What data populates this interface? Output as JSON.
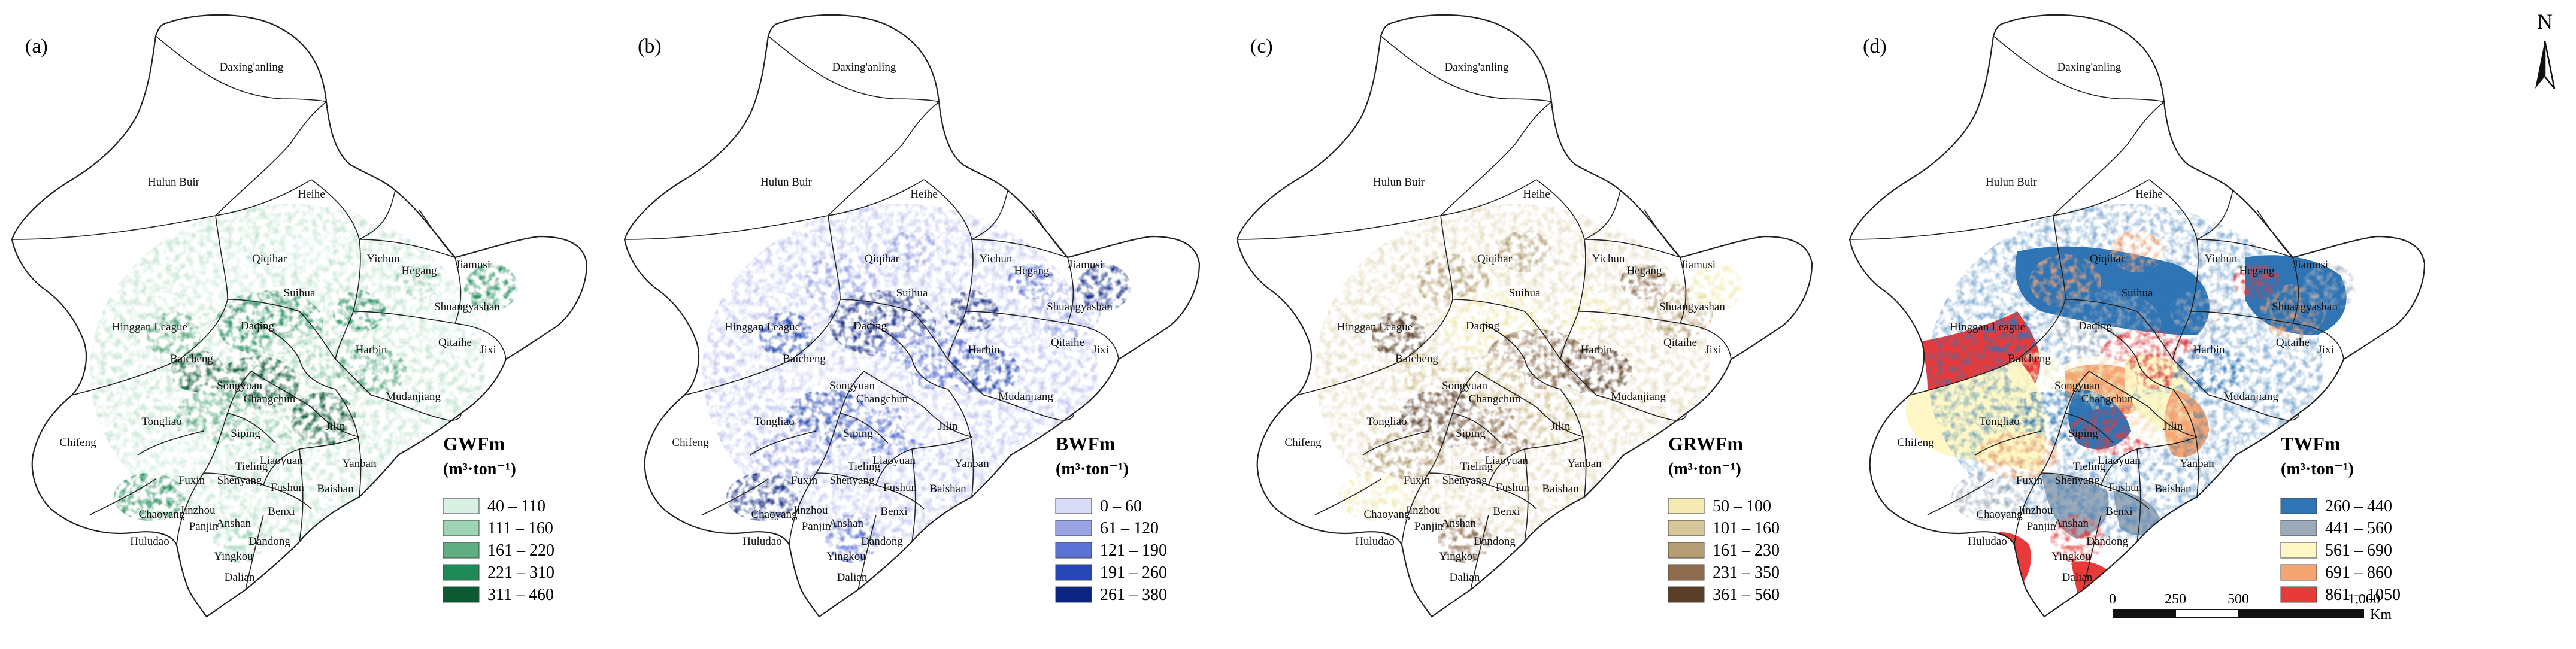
{
  "panels": [
    {
      "label": "(a)",
      "legend_title": "GWFm",
      "legend_unit": "(m³·ton⁻¹)",
      "classes": [
        "40 – 110",
        "111 – 160",
        "161 – 220",
        "221 – 310",
        "311 – 460"
      ],
      "colors": [
        "#d8f1e3",
        "#9fd3b5",
        "#5fae82",
        "#1f8a57",
        "#0b5a32"
      ]
    },
    {
      "label": "(b)",
      "legend_title": "BWFm",
      "legend_unit": "(m³·ton⁻¹)",
      "classes": [
        "0 – 60",
        "61 – 120",
        "121 – 190",
        "191 – 260",
        "261 – 380"
      ],
      "colors": [
        "#d9dcf6",
        "#9aa4e6",
        "#5c72d4",
        "#2748b3",
        "#0d2582"
      ]
    },
    {
      "label": "(c)",
      "legend_title": "GRWFm",
      "legend_unit": "(m³·ton⁻¹)",
      "classes": [
        "50 – 100",
        "101 – 160",
        "161 – 230",
        "231 – 350",
        "361 – 560"
      ],
      "colors": [
        "#f4eab2",
        "#d7c69a",
        "#b59e74",
        "#8c6c4c",
        "#5b3e27"
      ]
    },
    {
      "label": "(d)",
      "legend_title": "TWFm",
      "legend_unit": "(m³·ton⁻¹)",
      "classes": [
        "260 – 440",
        "441 – 560",
        "561 – 690",
        "691 – 860",
        "861 – 1050"
      ],
      "colors": [
        "#2f74b5",
        "#9aaabb",
        "#fff8c6",
        "#f5a572",
        "#e83a3a"
      ]
    }
  ],
  "city_names": [
    "Daxing'anling",
    "Hulun Buir",
    "Heihe",
    "Qiqihar",
    "Yichun",
    "Hegang",
    "Jiamusi",
    "Shuangyashan",
    "Suihua",
    "Daqing",
    "Hinggan League",
    "Baicheng",
    "Harbin",
    "Qitaihe",
    "Jixi",
    "Songyuan",
    "Changchun",
    "Mudanjiang",
    "Tongliao",
    "Siping",
    "Jilin",
    "Chifeng",
    "Liaoyuan",
    "Tieling",
    "Yanban",
    "Fuxin",
    "Shenyang",
    "Fushun",
    "Baishan",
    "Chaoyang",
    "Jinzhou",
    "Benxi",
    "Panjin",
    "Anshan",
    "Huludao",
    "Dandong",
    "Yingkou",
    "Dalian"
  ],
  "scale_bar": {
    "ticks": [
      "0",
      "250",
      "500",
      "1,000"
    ],
    "unit": "Km"
  },
  "north_arrow": {
    "letter": "N",
    "icon": "north-arrow-icon"
  }
}
